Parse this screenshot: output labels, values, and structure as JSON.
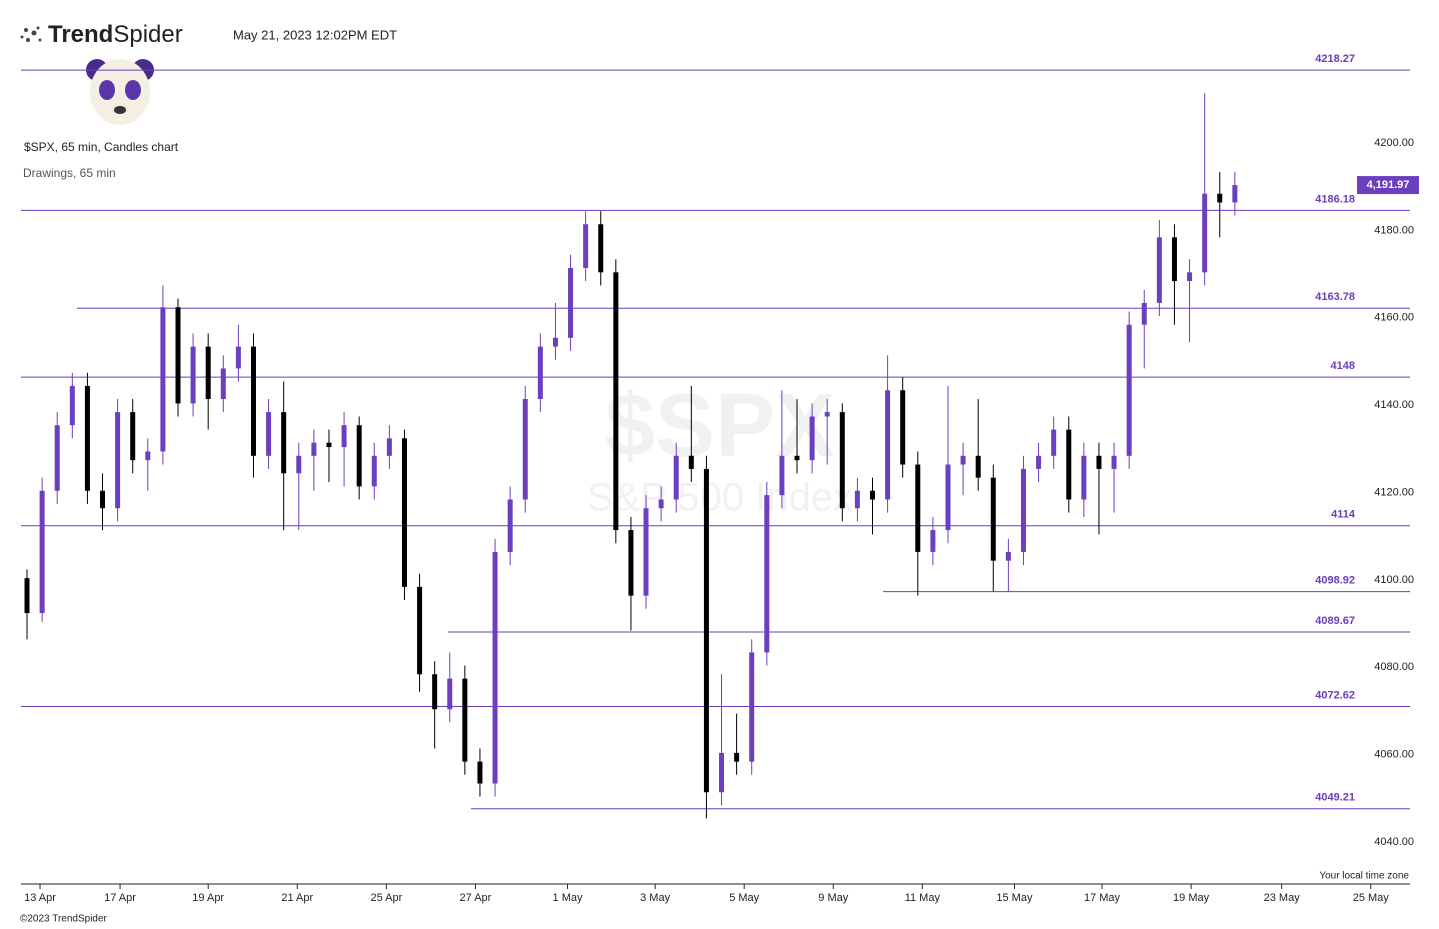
{
  "header": {
    "logo_bold": "Trend",
    "logo_light": "Spider",
    "timestamp": "May 21, 2023 12:02PM EDT",
    "symbol_info": "$SPX, 65 min, Candles chart",
    "drawings_info": "Drawings, 65 min",
    "timezone_note": "Your local time zone",
    "copyright": "©2023 TrendSpider"
  },
  "chart_data": {
    "type": "candlestick",
    "watermark": "$SPX",
    "watermark_subtitle": "S&P 500 Index",
    "bull_color": "#6b3fc0",
    "bear_color": "#000000",
    "level_color": "#6a3db8",
    "ylim": [
      4033,
      4223
    ],
    "yticks": [
      {
        "value": 4040,
        "label": "4040.00"
      },
      {
        "value": 4060,
        "label": "4060.00"
      },
      {
        "value": 4080,
        "label": "4080.00"
      },
      {
        "value": 4100,
        "label": "4100.00"
      },
      {
        "value": 4120,
        "label": "4120.00"
      },
      {
        "value": 4140,
        "label": "4140.00"
      },
      {
        "value": 4160,
        "label": "4160.00"
      },
      {
        "value": 4180,
        "label": "4180.00"
      },
      {
        "value": 4200,
        "label": "4200.00"
      }
    ],
    "xlim": [
      -0.2,
      91.8
    ],
    "xticks": [
      {
        "value": 1.06,
        "label": "13 Apr"
      },
      {
        "value": 6.36,
        "label": "17 Apr"
      },
      {
        "value": 12.2,
        "label": "19 Apr"
      },
      {
        "value": 18.1,
        "label": "21 Apr"
      },
      {
        "value": 24,
        "label": "25 Apr"
      },
      {
        "value": 29.9,
        "label": "27 Apr"
      },
      {
        "value": 36,
        "label": "1 May"
      },
      {
        "value": 41.8,
        "label": "3 May"
      },
      {
        "value": 47.7,
        "label": "5 May"
      },
      {
        "value": 53.6,
        "label": "9 May"
      },
      {
        "value": 59.5,
        "label": "11 May"
      },
      {
        "value": 65.6,
        "label": "15 May"
      },
      {
        "value": 71.4,
        "label": "17 May"
      },
      {
        "value": 77.3,
        "label": "19 May"
      },
      {
        "value": 83.3,
        "label": "23 May"
      },
      {
        "value": 89.2,
        "label": "25 May"
      }
    ],
    "last_price": 4191.97,
    "last_price_label": "4,191.97",
    "levels": [
      {
        "value": 4218.27,
        "x_start": -0.2
      },
      {
        "value": 4186.18,
        "x_start": -0.2
      },
      {
        "value": 4163.78,
        "x_start": 3.5
      },
      {
        "value": 4148.0,
        "x_start": -0.2
      },
      {
        "value": 4114.0,
        "x_start": -0.2
      },
      {
        "value": 4098.92,
        "x_start": 56.9
      },
      {
        "value": 4089.67,
        "x_start": 28.1
      },
      {
        "value": 4072.62,
        "x_start": -0.2
      },
      {
        "value": 4049.21,
        "x_start": 29.6
      }
    ],
    "candles": [
      [
        4102,
        4104,
        4088,
        4094
      ],
      [
        4094,
        4125,
        4092,
        4122
      ],
      [
        4122,
        4140,
        4119,
        4137
      ],
      [
        4137,
        4149,
        4134,
        4146
      ],
      [
        4146,
        4149,
        4119,
        4122
      ],
      [
        4122,
        4126,
        4113,
        4118
      ],
      [
        4118,
        4143,
        4115,
        4140
      ],
      [
        4140,
        4143,
        4126,
        4129
      ],
      [
        4129,
        4134,
        4122,
        4131
      ],
      [
        4131,
        4169,
        4128,
        4164
      ],
      [
        4164,
        4166,
        4139,
        4142
      ],
      [
        4142,
        4158,
        4139,
        4155
      ],
      [
        4155,
        4158,
        4136,
        4143
      ],
      [
        4143,
        4153,
        4140,
        4150
      ],
      [
        4150,
        4160,
        4147,
        4155
      ],
      [
        4155,
        4158,
        4125,
        4130
      ],
      [
        4130,
        4143,
        4127,
        4140
      ],
      [
        4140,
        4147,
        4113,
        4126
      ],
      [
        4126,
        4133,
        4113,
        4130
      ],
      [
        4130,
        4136,
        4122,
        4133
      ],
      [
        4133,
        4136,
        4124,
        4132
      ],
      [
        4132,
        4140,
        4123,
        4137
      ],
      [
        4137,
        4139,
        4120,
        4123
      ],
      [
        4123,
        4133,
        4120,
        4130
      ],
      [
        4130,
        4137,
        4127,
        4134
      ],
      [
        4134,
        4136,
        4097,
        4100
      ],
      [
        4100,
        4103,
        4076,
        4080
      ],
      [
        4080,
        4083,
        4063,
        4072
      ],
      [
        4072,
        4085,
        4069,
        4079
      ],
      [
        4079,
        4082,
        4057,
        4060
      ],
      [
        4060,
        4063,
        4052,
        4055
      ],
      [
        4055,
        4111,
        4052,
        4108
      ],
      [
        4108,
        4123,
        4105,
        4120
      ],
      [
        4120,
        4146,
        4117,
        4143
      ],
      [
        4143,
        4158,
        4140,
        4155
      ],
      [
        4155,
        4165,
        4152,
        4157
      ],
      [
        4157,
        4176,
        4154,
        4173
      ],
      [
        4173,
        4186,
        4170,
        4183
      ],
      [
        4183,
        4186,
        4169,
        4172
      ],
      [
        4172,
        4175,
        4110,
        4113
      ],
      [
        4113,
        4116,
        4090,
        4098
      ],
      [
        4098,
        4121,
        4095,
        4118
      ],
      [
        4118,
        4123,
        4115,
        4120
      ],
      [
        4120,
        4133,
        4117,
        4130
      ],
      [
        4130,
        4146,
        4124,
        4127
      ],
      [
        4127,
        4130,
        4047,
        4053
      ],
      [
        4053,
        4080,
        4050,
        4062
      ],
      [
        4062,
        4071,
        4057,
        4060
      ],
      [
        4060,
        4088,
        4057,
        4085
      ],
      [
        4085,
        4124,
        4082,
        4121
      ],
      [
        4121,
        4145,
        4118,
        4130
      ],
      [
        4130,
        4143,
        4126,
        4129
      ],
      [
        4129,
        4142,
        4126,
        4139
      ],
      [
        4139,
        4143,
        4128,
        4140
      ],
      [
        4140,
        4142,
        4115,
        4118
      ],
      [
        4118,
        4125,
        4115,
        4122
      ],
      [
        4122,
        4125,
        4112,
        4120
      ],
      [
        4120,
        4153,
        4117,
        4145
      ],
      [
        4145,
        4148,
        4125,
        4128
      ],
      [
        4128,
        4131,
        4098,
        4108
      ],
      [
        4108,
        4116,
        4105,
        4113
      ],
      [
        4113,
        4146,
        4110,
        4128
      ],
      [
        4128,
        4133,
        4121,
        4130
      ],
      [
        4130,
        4143,
        4122,
        4125
      ],
      [
        4125,
        4128,
        4099,
        4106
      ],
      [
        4106,
        4111,
        4099,
        4108
      ],
      [
        4108,
        4130,
        4105,
        4127
      ],
      [
        4127,
        4133,
        4124,
        4130
      ],
      [
        4130,
        4139,
        4127,
        4136
      ],
      [
        4136,
        4139,
        4117,
        4120
      ],
      [
        4120,
        4133,
        4116,
        4130
      ],
      [
        4130,
        4133,
        4112,
        4127
      ],
      [
        4127,
        4133,
        4117,
        4130
      ],
      [
        4130,
        4163,
        4127,
        4160
      ],
      [
        4160,
        4168,
        4150,
        4165
      ],
      [
        4165,
        4184,
        4162,
        4180
      ],
      [
        4180,
        4183,
        4160,
        4170
      ],
      [
        4170,
        4175,
        4156,
        4172
      ],
      [
        4172,
        4213,
        4169,
        4190
      ],
      [
        4190,
        4195,
        4180,
        4188
      ],
      [
        4188,
        4195,
        4185,
        4191.97
      ]
    ]
  }
}
